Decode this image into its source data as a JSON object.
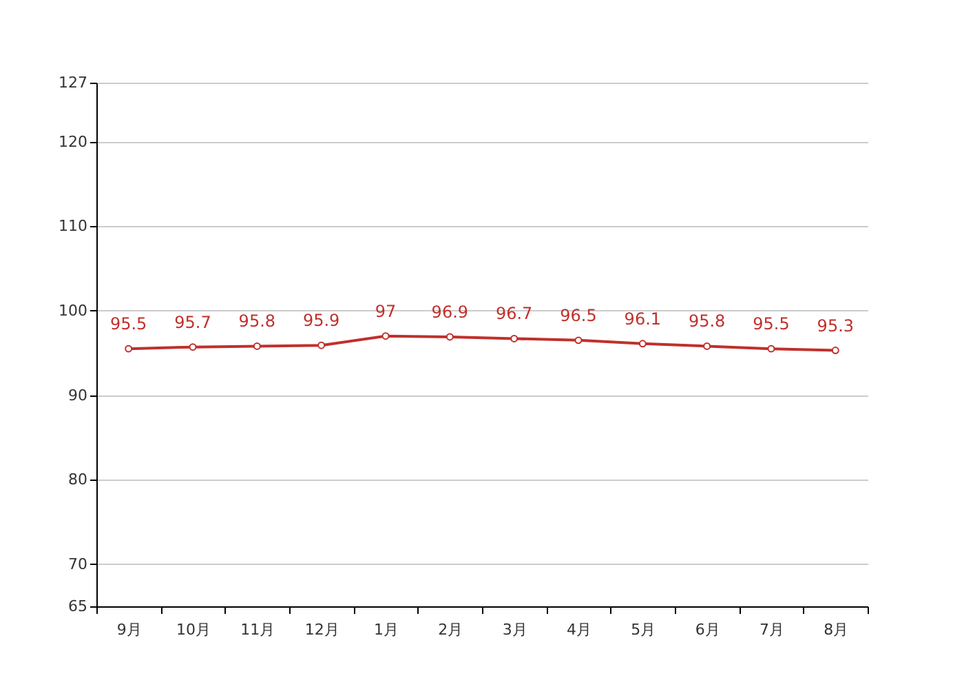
{
  "chart_data": {
    "type": "line",
    "categories": [
      "9月",
      "10月",
      "11月",
      "12月",
      "1月",
      "2月",
      "3月",
      "4月",
      "5月",
      "6月",
      "7月",
      "8月"
    ],
    "series": [
      {
        "color": "#c0302b",
        "values": [
          95.5,
          95.7,
          95.8,
          95.9,
          97,
          96.9,
          96.7,
          96.5,
          96.1,
          95.8,
          95.5,
          95.3
        ]
      }
    ],
    "ylim": [
      65,
      127
    ],
    "yticks": [
      65,
      70,
      80,
      90,
      100,
      110,
      120,
      127
    ],
    "grid": "y",
    "marker": "circle",
    "data_labels": true,
    "legend": false
  }
}
